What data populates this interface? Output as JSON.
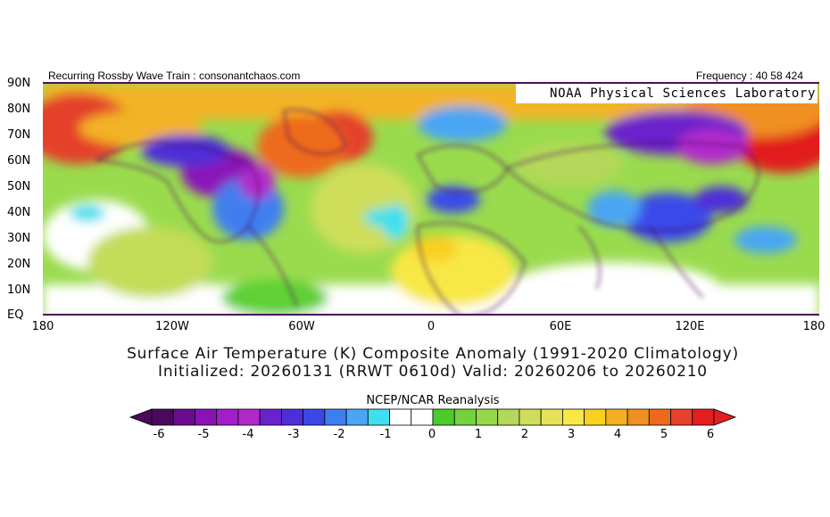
{
  "header": {
    "left_text": "Recurring Rossby Wave Train : consonantchaos.com",
    "right_text": "Frequency : 40 58 424",
    "lab_label": "NOAA Physical Sciences Laboratory"
  },
  "map": {
    "lat_labels": [
      "90N",
      "80N",
      "70N",
      "60N",
      "50N",
      "40N",
      "30N",
      "20N",
      "10N",
      "EQ"
    ],
    "lon_labels": [
      "180",
      "120W",
      "60W",
      "0",
      "60E",
      "120E",
      "180"
    ]
  },
  "title": {
    "line1": "Surface Air Temperature (K) Composite Anomaly (1991-2020 Climatology)",
    "line2": "Initialized: 20260131 (RRWT 0610d) Valid: 20260206 to 20260210"
  },
  "colorbar": {
    "title": "NCEP/NCAR Reanalysis",
    "tick_labels": [
      "-6",
      "-5",
      "-4",
      "-3",
      "-2",
      "-1",
      "0",
      "1",
      "2",
      "3",
      "4",
      "5",
      "6"
    ],
    "colors": [
      "#4a0a5a",
      "#6a0a8e",
      "#8a12b8",
      "#a21ec8",
      "#b02aca",
      "#6a22cc",
      "#4e2ed8",
      "#3a48e8",
      "#3f7ef0",
      "#4aa6f4",
      "#3fe0ee",
      "#ffffff",
      "#ffffff",
      "#4acb2a",
      "#74d23c",
      "#96d84c",
      "#b4d85a",
      "#cede5a",
      "#e6e25a",
      "#f8e845",
      "#f8d020",
      "#f4b020",
      "#f09020",
      "#ee6a1a",
      "#e8402a",
      "#e21e1e"
    ]
  }
}
